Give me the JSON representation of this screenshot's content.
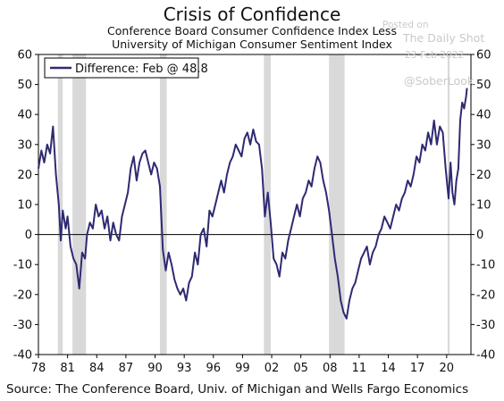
{
  "chart_data": {
    "type": "line",
    "title": "Crisis of Confidence",
    "subtitle_lines": [
      "Conference Board Consumer Confidence Index Less",
      "University of Michigan Consumer Sentiment Index"
    ],
    "source": "Source: The Conference Board, Univ. of Michigan and Wells Fargo Economics",
    "watermark": [
      "Posted on",
      "The Daily Shot",
      "23-Feb-2022",
      "@SoberLook"
    ],
    "legend": {
      "label": "Difference: Feb @ 48.8",
      "position": "top-left"
    },
    "xlim": [
      1978.0,
      2022.5
    ],
    "ylim": [
      -40,
      60
    ],
    "y_ticks": [
      -40,
      -30,
      -20,
      -10,
      0,
      10,
      20,
      30,
      40,
      50,
      60
    ],
    "y_tick_labels": [
      "-40",
      "-30",
      "-20",
      "-10",
      "0",
      "10",
      "20",
      "30",
      "40",
      "50",
      "60"
    ],
    "x_ticks": [
      1978,
      1981,
      1984,
      1987,
      1990,
      1993,
      1996,
      1999,
      2002,
      2005,
      2008,
      2011,
      2014,
      2017,
      2020
    ],
    "x_tick_labels": [
      "78",
      "81",
      "84",
      "87",
      "90",
      "93",
      "96",
      "99",
      "02",
      "05",
      "08",
      "11",
      "14",
      "17",
      "20"
    ],
    "recessions": [
      [
        1980.0,
        1980.5
      ],
      [
        1981.5,
        1982.9
      ],
      [
        1990.5,
        1991.2
      ],
      [
        2001.2,
        2001.9
      ],
      [
        2007.9,
        2009.5
      ],
      [
        2020.1,
        2020.3
      ]
    ],
    "series": [
      {
        "name": "Difference: Feb @ 48.8",
        "color": "#2e2a72",
        "x": [
          1978.0,
          1978.3,
          1978.6,
          1978.9,
          1979.2,
          1979.5,
          1979.8,
          1980.1,
          1980.3,
          1980.5,
          1980.8,
          1981.0,
          1981.3,
          1981.6,
          1981.9,
          1982.2,
          1982.5,
          1982.8,
          1983.0,
          1983.3,
          1983.6,
          1983.9,
          1984.2,
          1984.5,
          1984.8,
          1985.1,
          1985.4,
          1985.7,
          1986.0,
          1986.3,
          1986.6,
          1986.9,
          1987.2,
          1987.5,
          1987.8,
          1988.1,
          1988.4,
          1988.7,
          1989.0,
          1989.3,
          1989.6,
          1989.9,
          1990.2,
          1990.5,
          1990.8,
          1991.1,
          1991.4,
          1991.7,
          1992.0,
          1992.3,
          1992.6,
          1992.9,
          1993.2,
          1993.5,
          1993.8,
          1994.1,
          1994.4,
          1994.7,
          1995.0,
          1995.3,
          1995.6,
          1995.9,
          1996.2,
          1996.5,
          1996.8,
          1997.1,
          1997.4,
          1997.7,
          1998.0,
          1998.3,
          1998.6,
          1998.9,
          1999.2,
          1999.5,
          1999.8,
          2000.1,
          2000.4,
          2000.7,
          2001.0,
          2001.3,
          2001.6,
          2001.9,
          2002.2,
          2002.5,
          2002.8,
          2003.1,
          2003.4,
          2003.7,
          2004.0,
          2004.3,
          2004.6,
          2004.9,
          2005.2,
          2005.5,
          2005.8,
          2006.1,
          2006.4,
          2006.7,
          2007.0,
          2007.3,
          2007.6,
          2007.9,
          2008.2,
          2008.5,
          2008.8,
          2009.1,
          2009.4,
          2009.7,
          2010.0,
          2010.3,
          2010.6,
          2010.9,
          2011.2,
          2011.5,
          2011.8,
          2012.1,
          2012.4,
          2012.7,
          2013.0,
          2013.3,
          2013.6,
          2013.9,
          2014.2,
          2014.5,
          2014.8,
          2015.1,
          2015.4,
          2015.7,
          2016.0,
          2016.3,
          2016.6,
          2016.9,
          2017.2,
          2017.5,
          2017.8,
          2018.1,
          2018.4,
          2018.7,
          2019.0,
          2019.3,
          2019.6,
          2019.9,
          2020.2,
          2020.4,
          2020.6,
          2020.8,
          2021.0,
          2021.2,
          2021.4,
          2021.6,
          2021.8,
          2022.0,
          2022.1
        ],
        "y": [
          22,
          28,
          24,
          30,
          27,
          36,
          20,
          10,
          -2,
          8,
          2,
          6,
          -4,
          -8,
          -10,
          -18,
          -6,
          -8,
          0,
          4,
          2,
          10,
          6,
          8,
          2,
          6,
          -2,
          4,
          0,
          -2,
          6,
          10,
          14,
          22,
          26,
          18,
          24,
          27,
          28,
          24,
          20,
          24,
          22,
          16,
          -5,
          -12,
          -6,
          -10,
          -15,
          -18,
          -20,
          -18,
          -22,
          -16,
          -14,
          -6,
          -10,
          0,
          2,
          -4,
          8,
          6,
          10,
          14,
          18,
          14,
          20,
          24,
          26,
          30,
          28,
          26,
          32,
          34,
          30,
          35,
          31,
          30,
          22,
          6,
          14,
          4,
          -8,
          -10,
          -14,
          -6,
          -8,
          -2,
          2,
          6,
          10,
          6,
          12,
          14,
          18,
          16,
          22,
          26,
          24,
          18,
          14,
          8,
          0,
          -8,
          -14,
          -22,
          -26,
          -28,
          -22,
          -18,
          -16,
          -12,
          -8,
          -6,
          -4,
          -10,
          -6,
          -4,
          0,
          2,
          6,
          4,
          2,
          6,
          10,
          8,
          12,
          14,
          18,
          16,
          20,
          26,
          24,
          30,
          28,
          34,
          30,
          38,
          30,
          36,
          34,
          22,
          12,
          24,
          14,
          10,
          18,
          22,
          38,
          44,
          42,
          46,
          48.8
        ]
      }
    ]
  }
}
